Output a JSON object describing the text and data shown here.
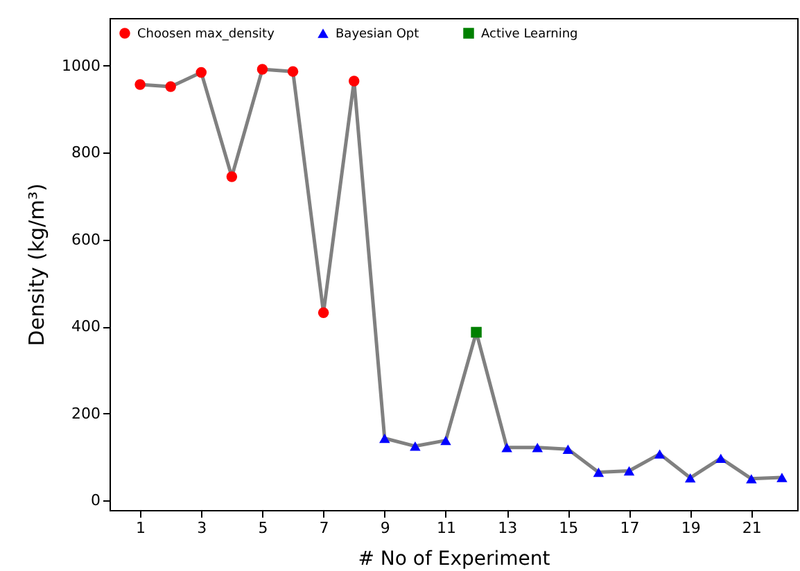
{
  "chart_data": {
    "type": "scatter",
    "xlabel": "# No of Experiment",
    "ylabel": "Density (kg/m³)",
    "xlim": [
      0,
      22.5
    ],
    "ylim": [
      -22,
      1110
    ],
    "xticks": [
      1,
      3,
      5,
      7,
      9,
      11,
      13,
      15,
      17,
      19,
      21
    ],
    "yticks": [
      0,
      200,
      400,
      600,
      800,
      1000
    ],
    "legend": "top left",
    "grid": false,
    "series": [
      {
        "type": "line",
        "color": "#808080",
        "marker": "none",
        "line_style": "solid",
        "x": [
          1,
          2,
          3,
          4,
          5,
          6,
          7,
          8,
          9,
          10,
          11,
          12,
          13,
          14,
          15,
          16,
          17,
          18,
          19,
          20,
          21,
          22
        ],
        "values": [
          957,
          952,
          985,
          745,
          992,
          987,
          432,
          965,
          143,
          125,
          138,
          387,
          122,
          122,
          118,
          65,
          68,
          107,
          52,
          97,
          50,
          53
        ]
      },
      {
        "name": "Choosen max_density",
        "color": "#ff0000",
        "marker": "circle",
        "x": [
          1,
          2,
          3,
          4,
          5,
          6,
          7,
          8
        ],
        "values": [
          957,
          952,
          985,
          745,
          992,
          987,
          432,
          965
        ]
      },
      {
        "name": "Bayesian Opt",
        "color": "#0000ff",
        "marker": "triangle",
        "x": [
          9,
          10,
          11,
          13,
          14,
          15,
          16,
          17,
          18,
          19,
          20,
          21,
          22
        ],
        "values": [
          143,
          125,
          138,
          122,
          122,
          118,
          65,
          68,
          107,
          52,
          97,
          50,
          53
        ]
      },
      {
        "name": "Active Learning",
        "color": "#008000",
        "marker": "square",
        "x": [
          12
        ],
        "values": [
          387
        ]
      }
    ]
  }
}
